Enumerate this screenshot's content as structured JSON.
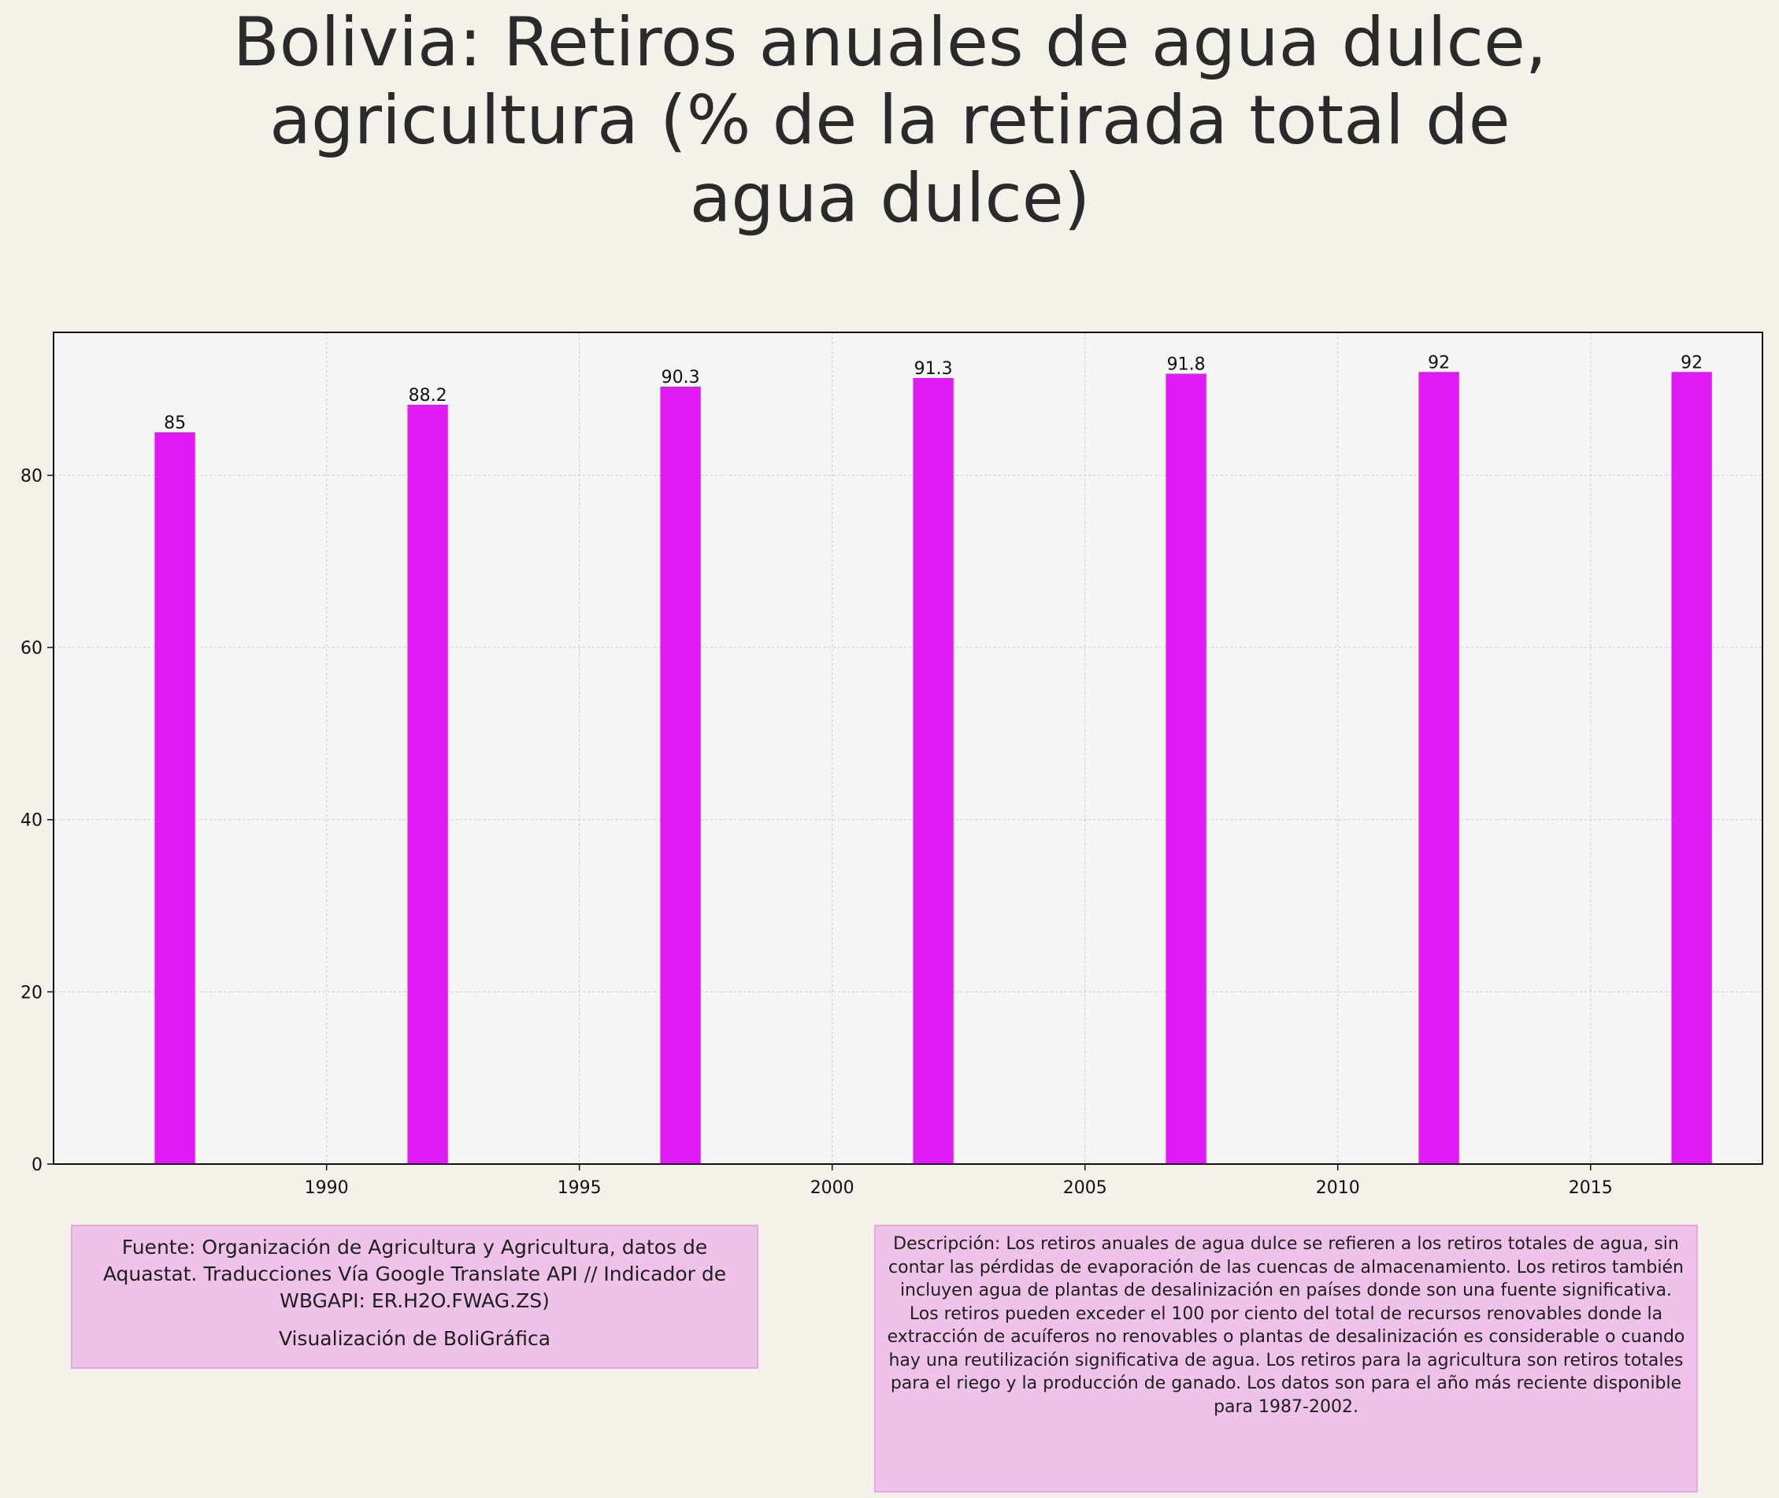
{
  "title": "Bolivia:  Retiros anuales de agua dulce, agricultura (% de la retirada total de agua dulce)",
  "source": {
    "text": "Fuente: Organización de Agricultura y Agricultura, datos de Aquastat. Traducciones Vía Google Translate API // Indicador de WBGAPI: ER.H2O.FWAG.ZS)",
    "credit": "Visualización de BoliGráfica"
  },
  "description": "Descripción: Los retiros anuales de agua dulce se refieren a los retiros totales de agua, sin contar las pérdidas de evaporación de las cuencas de almacenamiento. Los retiros también incluyen agua de plantas de desalinización en países donde son una fuente significativa. Los retiros pueden exceder el 100 por ciento del total de recursos renovables donde la extracción de acuíferos no renovables o plantas de desalinización es considerable o cuando hay una reutilización significativa de agua. Los retiros para la agricultura son retiros totales para el riego y la producción de ganado. Los datos son para el año más reciente disponible para 1987-2002.",
  "colors": {
    "bar": "#e01af5",
    "plot_background": "#f5f5f5",
    "page_background": "#f4f0ea",
    "note_background": "#efc2e9"
  },
  "chart_data": {
    "type": "bar",
    "title": "Bolivia:  Retiros anuales de agua dulce, agricultura (% de la retirada total de agua dulce)",
    "xlabel": "",
    "ylabel": "",
    "x": [
      1987,
      1992,
      1997,
      2002,
      2007,
      2012,
      2017
    ],
    "values": [
      85,
      88.2,
      90.3,
      91.3,
      91.8,
      92,
      92
    ],
    "data_labels": [
      "85",
      "88.2",
      "90.3",
      "91.3",
      "91.8",
      "92",
      "92"
    ],
    "xlim": [
      1984.6,
      2018.4
    ],
    "ylim": [
      0,
      96.6
    ],
    "x_ticks": [
      1990,
      1995,
      2000,
      2005,
      2010,
      2015
    ],
    "y_ticks": [
      0,
      20,
      40,
      60,
      80
    ],
    "bar_width_years": 0.8,
    "grid": true,
    "legend": "none"
  }
}
